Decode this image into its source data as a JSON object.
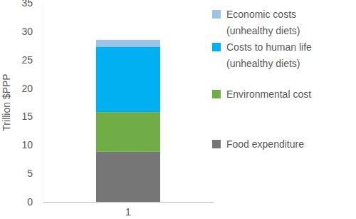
{
  "chart_data": {
    "type": "bar",
    "stacked": true,
    "categories": [
      "1"
    ],
    "y_label": "Trillion $PPP",
    "ylim": [
      0,
      35
    ],
    "yticks": [
      0,
      5,
      10,
      15,
      20,
      25,
      30,
      35
    ],
    "grid": false,
    "legend": "right",
    "series": [
      {
        "name": "Food expenditure",
        "color": "#767676",
        "values": [
          8.8
        ]
      },
      {
        "name": "Environmental cost",
        "color": "#70ad47",
        "values": [
          7.0
        ]
      },
      {
        "name": "Costs to human life (unhealthy diets)",
        "color": "#00b0f0",
        "values": [
          11.5
        ]
      },
      {
        "name": "Economic costs (unhealthy diets)",
        "color": "#9dc3e6",
        "values": [
          1.2
        ]
      }
    ]
  }
}
